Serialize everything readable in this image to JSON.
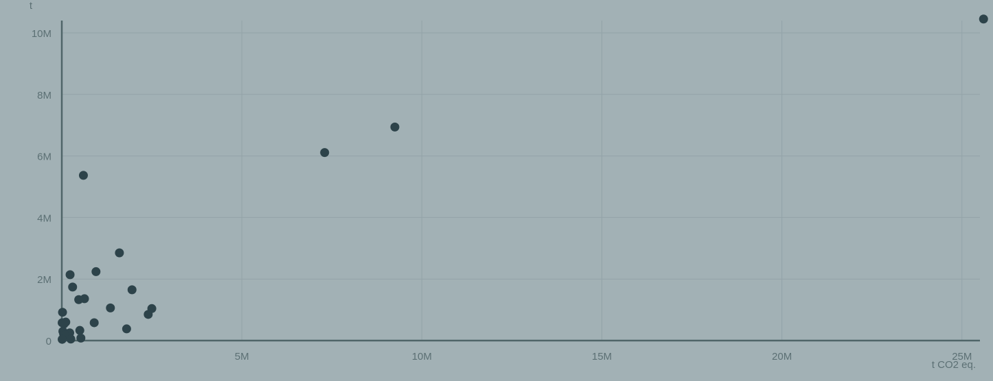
{
  "chart_data": {
    "type": "scatter",
    "title": "",
    "xlabel": "t CO2 eq.",
    "ylabel": "t",
    "xlim": [
      0,
      25500000
    ],
    "ylim": [
      0,
      10400000
    ],
    "x_ticks": [
      {
        "value": 5000000,
        "label": "5M"
      },
      {
        "value": 10000000,
        "label": "10M"
      },
      {
        "value": 15000000,
        "label": "15M"
      },
      {
        "value": 20000000,
        "label": "20M"
      },
      {
        "value": 25000000,
        "label": "25M"
      }
    ],
    "y_ticks": [
      {
        "value": 0,
        "label": "0"
      },
      {
        "value": 2000000,
        "label": "2M"
      },
      {
        "value": 4000000,
        "label": "4M"
      },
      {
        "value": 6000000,
        "label": "6M"
      },
      {
        "value": 8000000,
        "label": "8M"
      },
      {
        "value": 10000000,
        "label": "10M"
      }
    ],
    "grid": true,
    "legend": "none",
    "colors": {
      "background": "#a2b1b5",
      "point": "#2d434a",
      "axis": "#4f6568",
      "grid": "#93a3a8",
      "text": "#5c7074"
    },
    "series": [
      {
        "points": [
          {
            "x": 25600000,
            "y": 10450000
          },
          {
            "x": 9250000,
            "y": 6940000
          },
          {
            "x": 7300000,
            "y": 6110000
          },
          {
            "x": 600000,
            "y": 5370000
          },
          {
            "x": 1600000,
            "y": 2850000
          },
          {
            "x": 950000,
            "y": 2240000
          },
          {
            "x": 230000,
            "y": 2140000
          },
          {
            "x": 300000,
            "y": 1740000
          },
          {
            "x": 1950000,
            "y": 1650000
          },
          {
            "x": 630000,
            "y": 1360000
          },
          {
            "x": 470000,
            "y": 1330000
          },
          {
            "x": 1350000,
            "y": 1060000
          },
          {
            "x": 2500000,
            "y": 1040000
          },
          {
            "x": 20000,
            "y": 920000
          },
          {
            "x": 2400000,
            "y": 850000
          },
          {
            "x": 110000,
            "y": 600000
          },
          {
            "x": 10000,
            "y": 580000
          },
          {
            "x": 900000,
            "y": 580000
          },
          {
            "x": 60000,
            "y": 540000
          },
          {
            "x": 1800000,
            "y": 380000
          },
          {
            "x": 500000,
            "y": 330000
          },
          {
            "x": 30000,
            "y": 300000
          },
          {
            "x": 220000,
            "y": 250000
          },
          {
            "x": 50000,
            "y": 220000
          },
          {
            "x": 80000,
            "y": 180000
          },
          {
            "x": 530000,
            "y": 80000
          },
          {
            "x": 250000,
            "y": 50000
          },
          {
            "x": 10000,
            "y": 40000
          }
        ]
      }
    ]
  }
}
